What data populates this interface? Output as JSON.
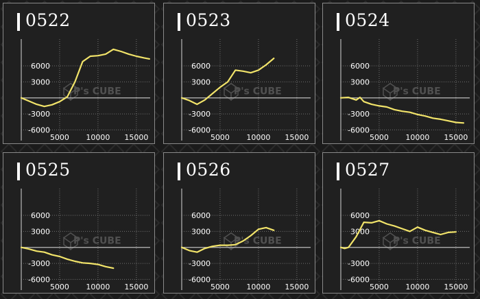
{
  "colors": {
    "background": "#1b1b1b",
    "panel": "#202020",
    "border": "#8a8a8a",
    "line": "#f2e46a",
    "zero": "#bdbdbd",
    "grid": "#707070",
    "text": "#ffffff"
  },
  "watermark": {
    "brand": "P's CUBE",
    "icon": "cube-logo-icon"
  },
  "chart_data": [
    {
      "type": "line",
      "title": "0522",
      "xlim": [
        0,
        16800
      ],
      "ylim": [
        -8000,
        10500
      ],
      "xticks": [
        5000,
        10000,
        15000
      ],
      "yticks": [
        6000,
        3000,
        -3000,
        -6000
      ],
      "grid": true,
      "x": [
        0,
        1000,
        2000,
        3000,
        4000,
        5000,
        6000,
        7000,
        8000,
        9000,
        10000,
        11000,
        12000,
        13000,
        14000,
        15000,
        16000,
        16700
      ],
      "y": [
        0,
        -600,
        -1200,
        -1600,
        -1300,
        -700,
        200,
        3000,
        6800,
        7800,
        7900,
        8200,
        9100,
        8700,
        8200,
        7800,
        7500,
        7300
      ]
    },
    {
      "type": "line",
      "title": "0523",
      "xlim": [
        0,
        16800
      ],
      "ylim": [
        -8000,
        10500
      ],
      "xticks": [
        5000,
        10000,
        15000
      ],
      "yticks": [
        6000,
        3000,
        -3000,
        -6000
      ],
      "grid": true,
      "x": [
        0,
        1000,
        2000,
        3000,
        4000,
        5000,
        6000,
        7000,
        8000,
        9000,
        10000,
        11000,
        12000
      ],
      "y": [
        0,
        -500,
        -1200,
        -400,
        800,
        2000,
        3000,
        5200,
        5000,
        4700,
        5200,
        6200,
        7400
      ]
    },
    {
      "type": "line",
      "title": "0524",
      "xlim": [
        0,
        16800
      ],
      "ylim": [
        -8000,
        10500
      ],
      "xticks": [
        5000,
        10000,
        15000
      ],
      "yticks": [
        6000,
        3000,
        -3000,
        -6000
      ],
      "grid": true,
      "x": [
        0,
        1000,
        2000,
        2500,
        3000,
        4000,
        5000,
        6000,
        7000,
        8000,
        9000,
        10000,
        11000,
        12000,
        13000,
        14000,
        15000,
        16000
      ],
      "y": [
        0,
        100,
        -400,
        100,
        -700,
        -1200,
        -1500,
        -1700,
        -2200,
        -2500,
        -2700,
        -3100,
        -3400,
        -3800,
        -4000,
        -4300,
        -4600,
        -4700
      ]
    },
    {
      "type": "line",
      "title": "0525",
      "xlim": [
        0,
        16800
      ],
      "ylim": [
        -8000,
        10500
      ],
      "xticks": [
        5000,
        10000,
        15000
      ],
      "yticks": [
        6000,
        3000,
        -3000,
        -6000
      ],
      "grid": true,
      "x": [
        0,
        1000,
        2000,
        3000,
        4000,
        5000,
        6000,
        7000,
        8000,
        9000,
        10000,
        11000,
        12000
      ],
      "y": [
        0,
        -300,
        -700,
        -900,
        -1400,
        -1700,
        -2200,
        -2600,
        -2900,
        -3000,
        -3200,
        -3600,
        -3900
      ]
    },
    {
      "type": "line",
      "title": "0526",
      "xlim": [
        0,
        16800
      ],
      "ylim": [
        -8000,
        10500
      ],
      "xticks": [
        5000,
        10000,
        15000
      ],
      "yticks": [
        6000,
        3000,
        -3000,
        -6000
      ],
      "grid": true,
      "x": [
        0,
        1000,
        2000,
        3000,
        4000,
        5000,
        6000,
        7000,
        8000,
        9000,
        10000,
        11000,
        12000
      ],
      "y": [
        0,
        -600,
        -900,
        -200,
        200,
        400,
        400,
        500,
        1200,
        2200,
        3400,
        3700,
        3200
      ]
    },
    {
      "type": "line",
      "title": "0527",
      "xlim": [
        0,
        16800
      ],
      "ylim": [
        -8000,
        10500
      ],
      "xticks": [
        5000,
        10000,
        15000
      ],
      "yticks": [
        6000,
        3000,
        -3000,
        -6000
      ],
      "grid": true,
      "x": [
        0,
        500,
        1000,
        2000,
        3000,
        4000,
        5000,
        6000,
        7000,
        8000,
        9000,
        10000,
        11000,
        12000,
        13000,
        14000,
        15000
      ],
      "y": [
        0,
        -200,
        0,
        2000,
        4700,
        4600,
        5000,
        4400,
        4000,
        3500,
        3000,
        3800,
        3200,
        2800,
        2400,
        2800,
        2900
      ]
    }
  ]
}
